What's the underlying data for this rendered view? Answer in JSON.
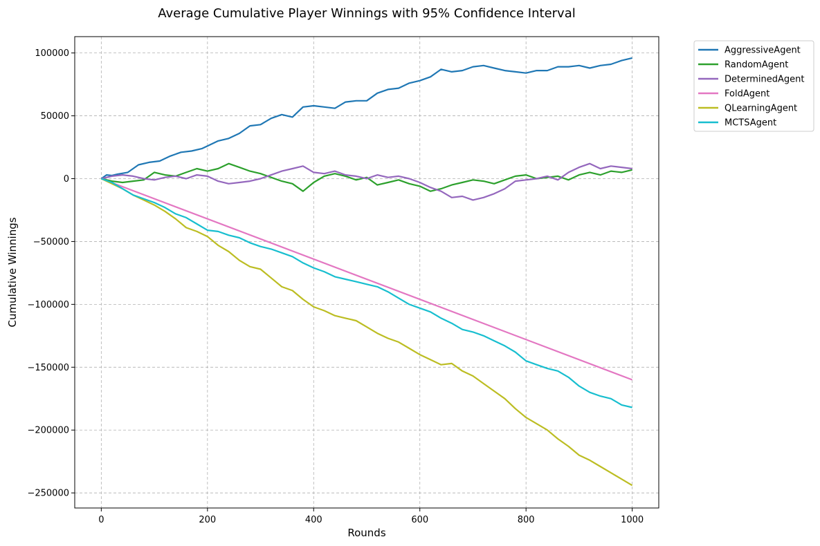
{
  "chart_data": {
    "type": "line",
    "title": "Average Cumulative Player Winnings with 95% Confidence Interval",
    "xlabel": "Rounds",
    "ylabel": "Cumulative Winnings",
    "xlim": [
      -50,
      1050
    ],
    "ylim": [
      -262000,
      113000
    ],
    "xticks": [
      0,
      200,
      400,
      600,
      800,
      1000
    ],
    "yticks": [
      100000,
      50000,
      0,
      -50000,
      -100000,
      -150000,
      -200000,
      -250000
    ],
    "ytick_labels": [
      "100000",
      "50000",
      "0",
      "−50000",
      "−100000",
      "−150000",
      "−200000",
      "−250000"
    ],
    "grid": true,
    "legend_position": "outside-top-right",
    "series": [
      {
        "name": "AggressiveAgent",
        "color": "#1f77b4",
        "points": [
          [
            0,
            0
          ],
          [
            10,
            3000
          ],
          [
            20,
            2500
          ],
          [
            30,
            3500
          ],
          [
            50,
            5000
          ],
          [
            70,
            11000
          ],
          [
            90,
            13000
          ],
          [
            110,
            14000
          ],
          [
            130,
            18000
          ],
          [
            150,
            21000
          ],
          [
            170,
            22000
          ],
          [
            190,
            24000
          ],
          [
            200,
            26000
          ],
          [
            220,
            30000
          ],
          [
            240,
            32000
          ],
          [
            260,
            36000
          ],
          [
            280,
            42000
          ],
          [
            300,
            43000
          ],
          [
            320,
            48000
          ],
          [
            340,
            51000
          ],
          [
            360,
            49000
          ],
          [
            380,
            57000
          ],
          [
            400,
            58000
          ],
          [
            420,
            57000
          ],
          [
            440,
            56000
          ],
          [
            460,
            61000
          ],
          [
            480,
            62000
          ],
          [
            500,
            62000
          ],
          [
            520,
            68000
          ],
          [
            540,
            71000
          ],
          [
            560,
            72000
          ],
          [
            580,
            76000
          ],
          [
            600,
            78000
          ],
          [
            620,
            81000
          ],
          [
            640,
            87000
          ],
          [
            660,
            85000
          ],
          [
            680,
            86000
          ],
          [
            700,
            89000
          ],
          [
            720,
            90000
          ],
          [
            740,
            88000
          ],
          [
            760,
            86000
          ],
          [
            780,
            85000
          ],
          [
            800,
            84000
          ],
          [
            820,
            86000
          ],
          [
            840,
            86000
          ],
          [
            860,
            89000
          ],
          [
            880,
            89000
          ],
          [
            900,
            90000
          ],
          [
            920,
            88000
          ],
          [
            940,
            90000
          ],
          [
            960,
            91000
          ],
          [
            980,
            94000
          ],
          [
            1000,
            96000
          ]
        ]
      },
      {
        "name": "RandomAgent",
        "color": "#2ca02c",
        "points": [
          [
            0,
            0
          ],
          [
            20,
            -2000
          ],
          [
            40,
            -3000
          ],
          [
            60,
            -2000
          ],
          [
            80,
            -1000
          ],
          [
            100,
            5000
          ],
          [
            120,
            3000
          ],
          [
            140,
            2000
          ],
          [
            160,
            5000
          ],
          [
            180,
            8000
          ],
          [
            200,
            6000
          ],
          [
            220,
            8000
          ],
          [
            240,
            12000
          ],
          [
            260,
            9000
          ],
          [
            280,
            6000
          ],
          [
            300,
            4000
          ],
          [
            320,
            1000
          ],
          [
            340,
            -2000
          ],
          [
            360,
            -4000
          ],
          [
            380,
            -10000
          ],
          [
            400,
            -3000
          ],
          [
            420,
            2000
          ],
          [
            440,
            4000
          ],
          [
            460,
            2000
          ],
          [
            480,
            -1000
          ],
          [
            500,
            1000
          ],
          [
            520,
            -5000
          ],
          [
            540,
            -3000
          ],
          [
            560,
            -1000
          ],
          [
            580,
            -4000
          ],
          [
            600,
            -6000
          ],
          [
            620,
            -10000
          ],
          [
            640,
            -8000
          ],
          [
            660,
            -5000
          ],
          [
            680,
            -3000
          ],
          [
            700,
            -1000
          ],
          [
            720,
            -2000
          ],
          [
            740,
            -4000
          ],
          [
            760,
            -1000
          ],
          [
            780,
            2000
          ],
          [
            800,
            3000
          ],
          [
            820,
            0
          ],
          [
            840,
            1000
          ],
          [
            860,
            2000
          ],
          [
            880,
            -1000
          ],
          [
            900,
            3000
          ],
          [
            920,
            5000
          ],
          [
            940,
            3000
          ],
          [
            960,
            6000
          ],
          [
            980,
            5000
          ],
          [
            1000,
            7000
          ]
        ]
      },
      {
        "name": "DeterminedAgent",
        "color": "#9467bd",
        "points": [
          [
            0,
            0
          ],
          [
            20,
            2000
          ],
          [
            40,
            3000
          ],
          [
            60,
            2000
          ],
          [
            80,
            0
          ],
          [
            100,
            -1000
          ],
          [
            120,
            1000
          ],
          [
            140,
            2000
          ],
          [
            160,
            0
          ],
          [
            180,
            3000
          ],
          [
            200,
            2000
          ],
          [
            220,
            -2000
          ],
          [
            240,
            -4000
          ],
          [
            260,
            -3000
          ],
          [
            280,
            -2000
          ],
          [
            300,
            0
          ],
          [
            320,
            3000
          ],
          [
            340,
            6000
          ],
          [
            360,
            8000
          ],
          [
            380,
            10000
          ],
          [
            400,
            5000
          ],
          [
            420,
            4000
          ],
          [
            440,
            6000
          ],
          [
            460,
            3000
          ],
          [
            480,
            2000
          ],
          [
            500,
            0
          ],
          [
            520,
            3000
          ],
          [
            540,
            1000
          ],
          [
            560,
            2000
          ],
          [
            580,
            0
          ],
          [
            600,
            -3000
          ],
          [
            620,
            -7000
          ],
          [
            640,
            -10000
          ],
          [
            660,
            -15000
          ],
          [
            680,
            -14000
          ],
          [
            700,
            -17000
          ],
          [
            720,
            -15000
          ],
          [
            740,
            -12000
          ],
          [
            760,
            -8000
          ],
          [
            780,
            -2000
          ],
          [
            800,
            -1000
          ],
          [
            820,
            0
          ],
          [
            840,
            2000
          ],
          [
            860,
            -1000
          ],
          [
            880,
            5000
          ],
          [
            900,
            9000
          ],
          [
            920,
            12000
          ],
          [
            940,
            8000
          ],
          [
            960,
            10000
          ],
          [
            980,
            9000
          ],
          [
            1000,
            8000
          ]
        ]
      },
      {
        "name": "FoldAgent",
        "color": "#e377c2",
        "points": [
          [
            0,
            0
          ],
          [
            1000,
            -160000
          ]
        ]
      },
      {
        "name": "QLearningAgent",
        "color": "#bcbd22",
        "points": [
          [
            0,
            0
          ],
          [
            20,
            -4000
          ],
          [
            40,
            -8000
          ],
          [
            60,
            -13000
          ],
          [
            80,
            -17000
          ],
          [
            100,
            -21000
          ],
          [
            120,
            -26000
          ],
          [
            140,
            -32000
          ],
          [
            160,
            -39000
          ],
          [
            180,
            -42000
          ],
          [
            200,
            -46000
          ],
          [
            220,
            -53000
          ],
          [
            240,
            -58000
          ],
          [
            260,
            -65000
          ],
          [
            280,
            -70000
          ],
          [
            300,
            -72000
          ],
          [
            320,
            -79000
          ],
          [
            340,
            -86000
          ],
          [
            360,
            -89000
          ],
          [
            380,
            -96000
          ],
          [
            400,
            -102000
          ],
          [
            420,
            -105000
          ],
          [
            440,
            -109000
          ],
          [
            460,
            -111000
          ],
          [
            480,
            -113000
          ],
          [
            500,
            -118000
          ],
          [
            520,
            -123000
          ],
          [
            540,
            -127000
          ],
          [
            560,
            -130000
          ],
          [
            580,
            -135000
          ],
          [
            600,
            -140000
          ],
          [
            620,
            -144000
          ],
          [
            640,
            -148000
          ],
          [
            660,
            -147000
          ],
          [
            680,
            -153000
          ],
          [
            700,
            -157000
          ],
          [
            720,
            -163000
          ],
          [
            740,
            -169000
          ],
          [
            760,
            -175000
          ],
          [
            780,
            -183000
          ],
          [
            800,
            -190000
          ],
          [
            820,
            -195000
          ],
          [
            840,
            -200000
          ],
          [
            860,
            -207000
          ],
          [
            880,
            -213000
          ],
          [
            900,
            -220000
          ],
          [
            920,
            -224000
          ],
          [
            940,
            -229000
          ],
          [
            960,
            -234000
          ],
          [
            980,
            -239000
          ],
          [
            1000,
            -244000
          ]
        ]
      },
      {
        "name": "MCTSAgent",
        "color": "#17becf",
        "points": [
          [
            0,
            0
          ],
          [
            20,
            -3000
          ],
          [
            40,
            -8000
          ],
          [
            60,
            -13000
          ],
          [
            80,
            -16000
          ],
          [
            100,
            -19000
          ],
          [
            120,
            -23000
          ],
          [
            140,
            -28000
          ],
          [
            160,
            -31000
          ],
          [
            180,
            -36000
          ],
          [
            200,
            -41000
          ],
          [
            220,
            -42000
          ],
          [
            240,
            -45000
          ],
          [
            260,
            -47000
          ],
          [
            280,
            -51000
          ],
          [
            300,
            -54000
          ],
          [
            320,
            -56000
          ],
          [
            340,
            -59000
          ],
          [
            360,
            -62000
          ],
          [
            380,
            -67000
          ],
          [
            400,
            -71000
          ],
          [
            420,
            -74000
          ],
          [
            440,
            -78000
          ],
          [
            460,
            -80000
          ],
          [
            480,
            -82000
          ],
          [
            500,
            -84000
          ],
          [
            520,
            -86000
          ],
          [
            540,
            -90000
          ],
          [
            560,
            -95000
          ],
          [
            580,
            -100000
          ],
          [
            600,
            -103000
          ],
          [
            620,
            -106000
          ],
          [
            640,
            -111000
          ],
          [
            660,
            -115000
          ],
          [
            680,
            -120000
          ],
          [
            700,
            -122000
          ],
          [
            720,
            -125000
          ],
          [
            740,
            -129000
          ],
          [
            760,
            -133000
          ],
          [
            780,
            -138000
          ],
          [
            800,
            -145000
          ],
          [
            820,
            -148000
          ],
          [
            840,
            -151000
          ],
          [
            860,
            -153000
          ],
          [
            880,
            -158000
          ],
          [
            900,
            -165000
          ],
          [
            920,
            -170000
          ],
          [
            940,
            -173000
          ],
          [
            960,
            -175000
          ],
          [
            980,
            -180000
          ],
          [
            1000,
            -182000
          ]
        ]
      }
    ]
  }
}
